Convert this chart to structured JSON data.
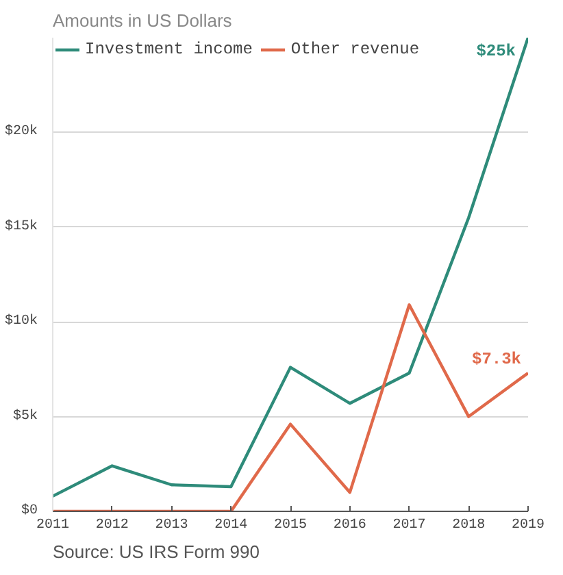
{
  "chart_data": {
    "type": "line",
    "subtitle": "Amounts in US Dollars",
    "annotations": [
      "Source: US IRS Form 990"
    ],
    "x": [
      2011,
      2012,
      2013,
      2014,
      2015,
      2016,
      2017,
      2018,
      2019
    ],
    "series": [
      {
        "name": "Investment income",
        "color": "#2e8b7a",
        "values": [
          800,
          2400,
          1400,
          1300,
          7600,
          5700,
          7300,
          15500,
          25000
        ],
        "value_labels": [
          null,
          null,
          null,
          null,
          null,
          null,
          null,
          null,
          "$25k"
        ]
      },
      {
        "name": "Other revenue",
        "color": "#e0694a",
        "values": [
          0,
          0,
          0,
          0,
          4600,
          1000,
          10900,
          5000,
          7300
        ],
        "value_labels": [
          null,
          null,
          null,
          null,
          null,
          null,
          null,
          null,
          "$7.3k"
        ]
      }
    ],
    "xlim": [
      2011,
      2019
    ],
    "xticks": [
      2011,
      2012,
      2013,
      2014,
      2015,
      2016,
      2017,
      2018,
      2019
    ],
    "ylim": [
      0,
      25000
    ],
    "yticks": [
      {
        "value": 0,
        "label": "$0"
      },
      {
        "value": 5000,
        "label": "$5k"
      },
      {
        "value": 10000,
        "label": "$10k"
      },
      {
        "value": 15000,
        "label": "$15k"
      },
      {
        "value": 20000,
        "label": "$20k"
      }
    ],
    "grid": "y",
    "legend": "top",
    "marker": "none",
    "line_style": "solid"
  }
}
